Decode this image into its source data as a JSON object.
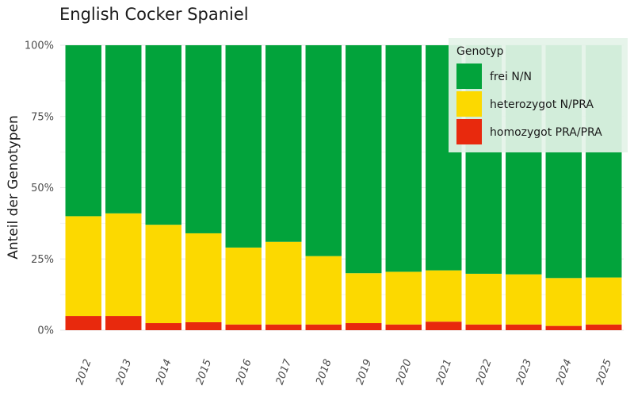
{
  "chart_data": {
    "type": "bar",
    "stacked": true,
    "title": "English Cocker Spaniel",
    "xlabel": "",
    "ylabel": "Anteil der Genotypen",
    "ylim": [
      0,
      100
    ],
    "yticks": [
      "0%",
      "25%",
      "50%",
      "75%",
      "100%"
    ],
    "categories": [
      "2012",
      "2013",
      "2014",
      "2015",
      "2016",
      "2017",
      "2018",
      "2019",
      "2020",
      "2021",
      "2022",
      "2023",
      "2024",
      "2025"
    ],
    "legend_title": "Genotyp",
    "legend_position": "top-right",
    "series": [
      {
        "name": "homozygot PRA/PRA",
        "color": "#e8290d",
        "values": [
          5,
          5,
          2.5,
          2.8,
          2,
          2,
          2,
          2.5,
          2,
          3,
          2,
          2,
          1.5,
          2
        ]
      },
      {
        "name": "heterozygot N/PRA",
        "color": "#fcd900",
        "values": [
          35,
          36,
          34.5,
          31.2,
          27,
          29,
          24,
          17.5,
          18.5,
          18,
          17.8,
          17.6,
          16.8,
          16.5
        ]
      },
      {
        "name": "frei N/N",
        "color": "#02a33b",
        "values": [
          60,
          59,
          63,
          66,
          71,
          69,
          74,
          80,
          79.5,
          79,
          80.2,
          80.4,
          81.7,
          81.5
        ]
      }
    ],
    "legend_order": [
      "frei N/N",
      "heterozygot N/PRA",
      "homozygot PRA/PRA"
    ]
  }
}
